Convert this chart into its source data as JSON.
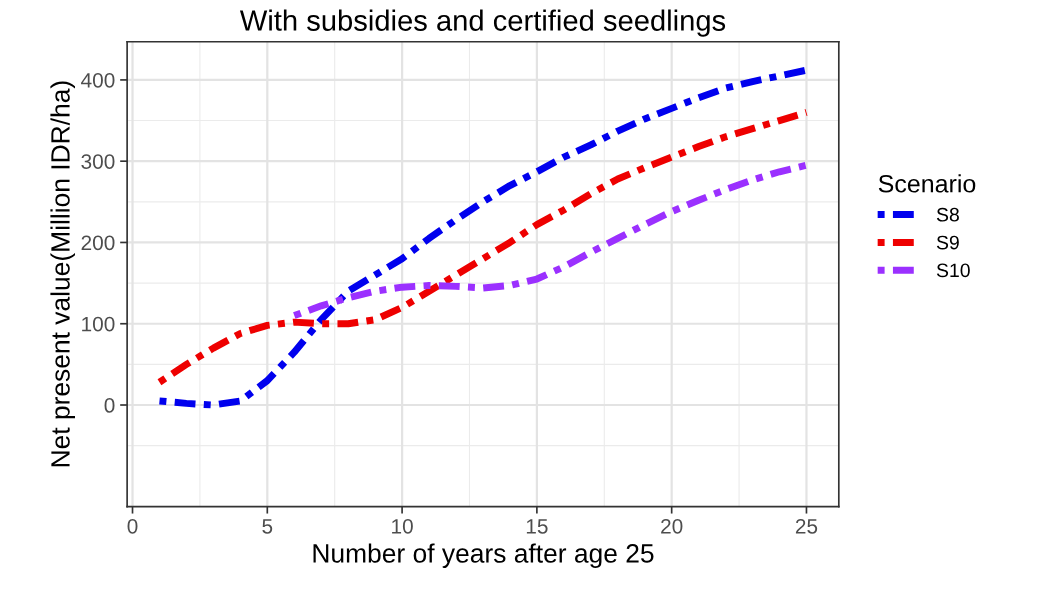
{
  "chart_data": {
    "type": "line",
    "title": "With subsidies and certified seedlings",
    "xlabel": "Number of years after age 25",
    "ylabel": "Net present value(Million IDR/ha)",
    "legend_title": "Scenario",
    "legend": "right",
    "grid": true,
    "line_style": "dashdot",
    "marker": "none",
    "x": [
      1,
      2,
      3,
      4,
      5,
      6,
      7,
      8,
      9,
      10,
      11,
      12,
      13,
      14,
      15,
      16,
      17,
      18,
      19,
      20,
      21,
      22,
      23,
      24,
      25
    ],
    "xlim": [
      -0.2,
      26.2
    ],
    "xticks": [
      0,
      5,
      10,
      15,
      20,
      25
    ],
    "ylim": [
      -125,
      447
    ],
    "yticks": [
      0,
      100,
      200,
      300,
      400
    ],
    "series": [
      {
        "name": "S8",
        "color": "#0000ee",
        "values": [
          5,
          2,
          0,
          5,
          30,
          65,
          105,
          140,
          160,
          180,
          205,
          228,
          250,
          270,
          287,
          305,
          320,
          337,
          352,
          365,
          378,
          390,
          398,
          405,
          412
        ]
      },
      {
        "name": "S9",
        "color": "#ee0000",
        "values": [
          28,
          50,
          70,
          88,
          98,
          102,
          100,
          100,
          105,
          120,
          140,
          160,
          180,
          200,
          222,
          240,
          260,
          278,
          292,
          305,
          318,
          330,
          340,
          350,
          360
        ]
      },
      {
        "name": "S10",
        "color": "#9b30ff",
        "values": [
          null,
          null,
          null,
          null,
          null,
          110,
          122,
          132,
          140,
          145,
          147,
          146,
          144,
          147,
          155,
          170,
          188,
          205,
          222,
          238,
          252,
          265,
          277,
          287,
          295
        ]
      }
    ]
  }
}
